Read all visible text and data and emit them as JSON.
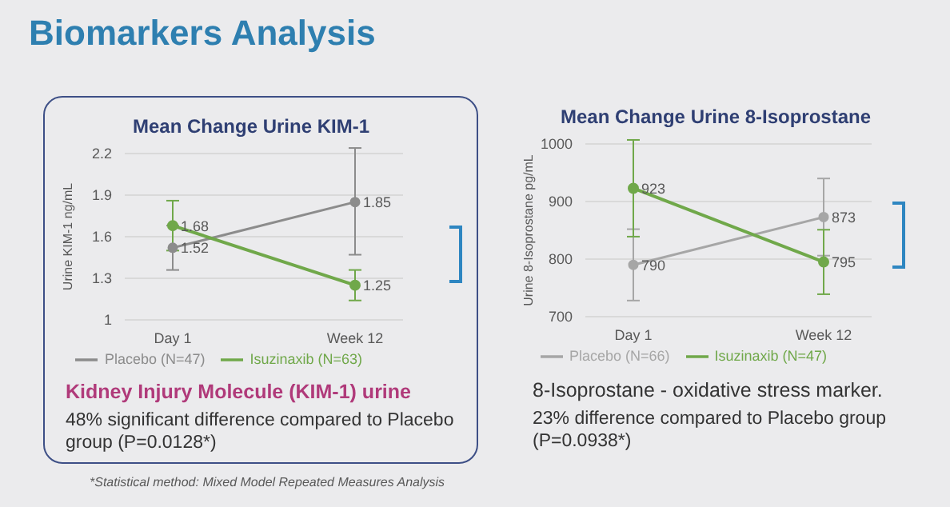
{
  "chart_data": [
    {
      "type": "line",
      "title": "Mean Change Urine KIM-1",
      "ylabel": "Urine KIM-1 ng/mL",
      "categories": [
        "Day 1",
        "Week 12"
      ],
      "series": [
        {
          "name": "Placebo (N=47)",
          "color": "#8c8c8c",
          "values": [
            1.52,
            1.85
          ],
          "errors": [
            [
              1.36,
              1.68
            ],
            [
              1.47,
              2.24
            ]
          ]
        },
        {
          "name": "Isuzinaxib (N=63)",
          "color": "#70a84a",
          "values": [
            1.68,
            1.25
          ],
          "errors": [
            [
              1.5,
              1.86
            ],
            [
              1.14,
              1.36
            ]
          ]
        }
      ],
      "ylim": [
        1,
        2.2
      ],
      "yticks": [
        1,
        1.3,
        1.6,
        1.9,
        2.2
      ],
      "grid": "y",
      "legend": "bottom",
      "marker": "circle",
      "line_style": "solid",
      "data_labels": true,
      "annotations": [
        "Biomarkers Analysis",
        "Kidney Injury Molecule (KIM-1) urine",
        "48% significant difference compared to Placebo group (P=0.0128*)",
        "*Statistical method: Mixed Model Repeated Measures Analysis"
      ]
    },
    {
      "type": "line",
      "title": "Mean Change Urine 8-Isoprostane",
      "ylabel": "Urine 8-Isoprostane pg/mL",
      "categories": [
        "Day 1",
        "Week 12"
      ],
      "series": [
        {
          "name": "Placebo (N=66)",
          "color": "#a6a6a6",
          "values": [
            790,
            873
          ],
          "errors": [
            [
              728,
              852
            ],
            [
              806,
              940
            ]
          ]
        },
        {
          "name": "Isuzinaxib (N=47)",
          "color": "#70a84a",
          "values": [
            923,
            795
          ],
          "errors": [
            [
              839,
              1007
            ],
            [
              739,
              851
            ]
          ]
        }
      ],
      "ylim": [
        700,
        1000
      ],
      "yticks": [
        700,
        800,
        900,
        1000
      ],
      "grid": "y",
      "legend": "bottom",
      "marker": "circle",
      "line_style": "solid",
      "data_labels": true,
      "annotations": [
        "8-Isoprostane - oxidative stress marker.",
        "23% difference compared to Placebo group (P=0.0938*)"
      ]
    }
  ]
}
